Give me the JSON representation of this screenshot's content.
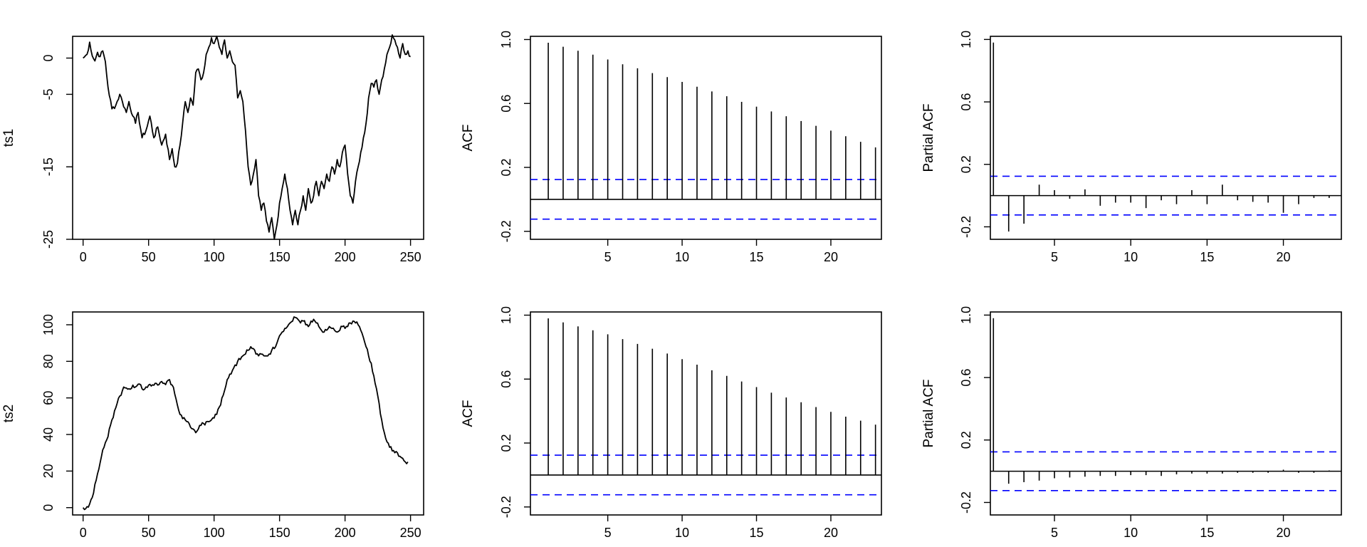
{
  "colors": {
    "line": "#000000",
    "ci": "#0000ff",
    "frame": "#000000"
  },
  "chart_data": [
    {
      "id": "ts1-series",
      "type": "line",
      "ylabel": "ts1",
      "xlabel": "",
      "xlim": [
        -8,
        260
      ],
      "ylim": [
        -25,
        3
      ],
      "x_ticks": [
        0,
        50,
        100,
        150,
        200,
        250
      ],
      "y_ticks": [
        -25,
        -15,
        -5,
        0
      ],
      "y_tick_labels": [
        "-25",
        "-15",
        "-5",
        "0"
      ],
      "keypoints": [
        [
          0,
          0
        ],
        [
          3,
          0.5
        ],
        [
          5,
          2.2
        ],
        [
          7,
          0.3
        ],
        [
          9,
          -0.4
        ],
        [
          11,
          0.8
        ],
        [
          13,
          0.2
        ],
        [
          15,
          1.0
        ],
        [
          17,
          -0.5
        ],
        [
          19,
          -4
        ],
        [
          22,
          -7
        ],
        [
          25,
          -6.5
        ],
        [
          28,
          -5
        ],
        [
          30,
          -6
        ],
        [
          33,
          -7.5
        ],
        [
          35,
          -6
        ],
        [
          38,
          -8
        ],
        [
          40,
          -9
        ],
        [
          42,
          -7.5
        ],
        [
          45,
          -11
        ],
        [
          48,
          -10
        ],
        [
          51,
          -8
        ],
        [
          54,
          -11
        ],
        [
          57,
          -9.5
        ],
        [
          60,
          -12
        ],
        [
          63,
          -10.5
        ],
        [
          66,
          -14
        ],
        [
          68,
          -12.5
        ],
        [
          70,
          -15
        ],
        [
          72,
          -14.5
        ],
        [
          74,
          -12
        ],
        [
          76,
          -9
        ],
        [
          78,
          -6
        ],
        [
          80,
          -7.5
        ],
        [
          82,
          -5.5
        ],
        [
          84,
          -6.5
        ],
        [
          86,
          -2
        ],
        [
          88,
          -1.5
        ],
        [
          90,
          -3
        ],
        [
          92,
          -2
        ],
        [
          94,
          0.5
        ],
        [
          96,
          1.5
        ],
        [
          98,
          2.8
        ],
        [
          100,
          2
        ],
        [
          102,
          3
        ],
        [
          104,
          1.5
        ],
        [
          106,
          0.5
        ],
        [
          108,
          2.5
        ],
        [
          110,
          0
        ],
        [
          112,
          1
        ],
        [
          114,
          -0.5
        ],
        [
          116,
          -1
        ],
        [
          118,
          -5.5
        ],
        [
          120,
          -4.5
        ],
        [
          122,
          -6
        ],
        [
          124,
          -10
        ],
        [
          126,
          -15
        ],
        [
          128,
          -17.5
        ],
        [
          130,
          -16
        ],
        [
          132,
          -14
        ],
        [
          134,
          -19
        ],
        [
          136,
          -21
        ],
        [
          138,
          -20
        ],
        [
          140,
          -22.5
        ],
        [
          142,
          -24
        ],
        [
          144,
          -22
        ],
        [
          146,
          -25
        ],
        [
          148,
          -23
        ],
        [
          150,
          -20
        ],
        [
          152,
          -18
        ],
        [
          154,
          -16
        ],
        [
          156,
          -18
        ],
        [
          158,
          -21
        ],
        [
          160,
          -23
        ],
        [
          162,
          -21
        ],
        [
          164,
          -23
        ],
        [
          166,
          -21
        ],
        [
          168,
          -19
        ],
        [
          170,
          -21
        ],
        [
          172,
          -18
        ],
        [
          174,
          -20
        ],
        [
          176,
          -19
        ],
        [
          178,
          -17
        ],
        [
          180,
          -19
        ],
        [
          182,
          -17
        ],
        [
          184,
          -18
        ],
        [
          186,
          -16
        ],
        [
          188,
          -17
        ],
        [
          190,
          -15
        ],
        [
          192,
          -16
        ],
        [
          194,
          -14
        ],
        [
          196,
          -15
        ],
        [
          198,
          -13
        ],
        [
          200,
          -12
        ],
        [
          202,
          -16
        ],
        [
          204,
          -19
        ],
        [
          206,
          -20
        ],
        [
          208,
          -17
        ],
        [
          210,
          -15
        ],
        [
          212,
          -13
        ],
        [
          214,
          -11
        ],
        [
          216,
          -9
        ],
        [
          218,
          -5.5
        ],
        [
          220,
          -3.5
        ],
        [
          222,
          -4
        ],
        [
          224,
          -3
        ],
        [
          226,
          -5
        ],
        [
          228,
          -3
        ],
        [
          230,
          -1.5
        ],
        [
          232,
          0.5
        ],
        [
          234,
          1.5
        ],
        [
          236,
          3.2
        ],
        [
          238,
          2.5
        ],
        [
          240,
          1.5
        ],
        [
          242,
          0
        ],
        [
          244,
          2
        ],
        [
          246,
          0.5
        ],
        [
          248,
          1
        ],
        [
          250,
          0.2
        ]
      ]
    },
    {
      "id": "ts1-acf",
      "type": "bar",
      "ylabel": "ACF",
      "xlim": [
        -0.2,
        23.4
      ],
      "ylim": [
        -0.25,
        1.02
      ],
      "x_ticks": [
        5,
        10,
        15,
        20
      ],
      "y_ticks": [
        -0.2,
        0.2,
        0.6,
        1.0
      ],
      "y_tick_labels": [
        "-0.2",
        "0.2",
        "0.6",
        "1.0"
      ],
      "lags": [
        1,
        2,
        3,
        4,
        5,
        6,
        7,
        8,
        9,
        10,
        11,
        12,
        13,
        14,
        15,
        16,
        17,
        18,
        19,
        20,
        21,
        22,
        23
      ],
      "values": [
        0.98,
        0.955,
        0.93,
        0.905,
        0.875,
        0.845,
        0.82,
        0.79,
        0.765,
        0.735,
        0.705,
        0.675,
        0.645,
        0.61,
        0.58,
        0.55,
        0.52,
        0.49,
        0.46,
        0.43,
        0.395,
        0.36,
        0.325
      ],
      "ci": 0.124
    },
    {
      "id": "ts1-pacf",
      "type": "bar",
      "ylabel": "Partial ACF",
      "xlim": [
        0.8,
        23.8
      ],
      "ylim": [
        -0.28,
        1.02
      ],
      "x_ticks": [
        5,
        10,
        15,
        20
      ],
      "y_ticks": [
        -0.2,
        0.2,
        0.6,
        1.0
      ],
      "y_tick_labels": [
        "-0.2",
        "0.2",
        "0.6",
        "1.0"
      ],
      "lags": [
        1,
        2,
        3,
        4,
        5,
        6,
        7,
        8,
        9,
        10,
        11,
        12,
        13,
        14,
        15,
        16,
        17,
        18,
        19,
        20,
        21,
        22,
        23
      ],
      "values": [
        0.98,
        -0.23,
        -0.18,
        0.07,
        0.035,
        -0.02,
        0.04,
        -0.065,
        -0.045,
        -0.045,
        -0.08,
        -0.03,
        -0.055,
        0.035,
        -0.055,
        0.07,
        -0.03,
        -0.04,
        -0.045,
        -0.11,
        -0.055,
        -0.015,
        -0.015
      ],
      "ci": 0.124
    },
    {
      "id": "ts2-series",
      "type": "line",
      "ylabel": "ts2",
      "xlabel": "",
      "xlim": [
        -8,
        260
      ],
      "ylim": [
        -4,
        107
      ],
      "x_ticks": [
        0,
        50,
        100,
        150,
        200,
        250
      ],
      "y_ticks": [
        0,
        20,
        40,
        60,
        80,
        100
      ],
      "y_tick_labels": [
        "0",
        "20",
        "40",
        "60",
        "80",
        "100"
      ],
      "keypoints": [
        [
          0,
          0
        ],
        [
          3,
          0.5
        ],
        [
          5,
          2
        ],
        [
          8,
          8
        ],
        [
          10,
          15
        ],
        [
          12,
          21
        ],
        [
          14,
          28
        ],
        [
          16,
          33
        ],
        [
          18,
          37
        ],
        [
          20,
          43
        ],
        [
          22,
          48
        ],
        [
          24,
          53
        ],
        [
          26,
          57
        ],
        [
          28,
          61
        ],
        [
          30,
          64
        ],
        [
          32,
          65.5
        ],
        [
          35,
          65
        ],
        [
          38,
          67
        ],
        [
          40,
          66
        ],
        [
          42,
          67.5
        ],
        [
          45,
          65
        ],
        [
          48,
          66
        ],
        [
          50,
          67
        ],
        [
          52,
          66.5
        ],
        [
          55,
          68
        ],
        [
          57,
          67
        ],
        [
          60,
          69
        ],
        [
          62,
          68
        ],
        [
          64,
          69
        ],
        [
          66,
          70
        ],
        [
          68,
          67
        ],
        [
          70,
          62
        ],
        [
          72,
          56
        ],
        [
          74,
          51
        ],
        [
          78,
          48
        ],
        [
          80,
          47
        ],
        [
          82,
          44
        ],
        [
          84,
          43
        ],
        [
          86,
          41
        ],
        [
          88,
          43
        ],
        [
          90,
          45
        ],
        [
          92,
          46
        ],
        [
          94,
          47
        ],
        [
          96,
          47
        ],
        [
          98,
          48
        ],
        [
          100,
          49
        ],
        [
          102,
          51
        ],
        [
          104,
          55
        ],
        [
          106,
          60
        ],
        [
          108,
          64
        ],
        [
          110,
          70
        ],
        [
          112,
          73
        ],
        [
          114,
          75
        ],
        [
          116,
          78
        ],
        [
          118,
          80
        ],
        [
          120,
          81
        ],
        [
          122,
          83
        ],
        [
          124,
          84
        ],
        [
          126,
          86
        ],
        [
          128,
          88
        ],
        [
          130,
          87
        ],
        [
          132,
          84
        ],
        [
          134,
          83
        ],
        [
          136,
          84
        ],
        [
          138,
          83
        ],
        [
          140,
          83
        ],
        [
          142,
          84
        ],
        [
          144,
          86
        ],
        [
          146,
          87
        ],
        [
          148,
          90
        ],
        [
          150,
          94
        ],
        [
          152,
          96
        ],
        [
          154,
          98
        ],
        [
          156,
          99
        ],
        [
          158,
          101
        ],
        [
          160,
          102
        ],
        [
          162,
          104
        ],
        [
          164,
          103
        ],
        [
          166,
          101
        ],
        [
          168,
          102
        ],
        [
          170,
          100
        ],
        [
          172,
          99
        ],
        [
          174,
          102
        ],
        [
          176,
          103
        ],
        [
          178,
          101
        ],
        [
          180,
          99
        ],
        [
          182,
          97
        ],
        [
          184,
          96
        ],
        [
          186,
          97
        ],
        [
          188,
          99
        ],
        [
          190,
          98
        ],
        [
          192,
          97
        ],
        [
          194,
          96
        ],
        [
          196,
          97
        ],
        [
          198,
          99
        ],
        [
          200,
          98
        ],
        [
          202,
          99
        ],
        [
          204,
          101
        ],
        [
          206,
          102
        ],
        [
          208,
          101
        ],
        [
          210,
          100
        ],
        [
          212,
          97
        ],
        [
          214,
          93
        ],
        [
          216,
          88
        ],
        [
          218,
          83
        ],
        [
          220,
          79
        ],
        [
          222,
          72
        ],
        [
          224,
          65
        ],
        [
          226,
          57
        ],
        [
          228,
          48
        ],
        [
          230,
          41
        ],
        [
          232,
          36
        ],
        [
          234,
          33
        ],
        [
          236,
          31
        ],
        [
          238,
          30
        ],
        [
          240,
          30
        ],
        [
          242,
          28
        ],
        [
          244,
          27
        ],
        [
          246,
          25
        ],
        [
          248,
          25
        ]
      ]
    },
    {
      "id": "ts2-acf",
      "type": "bar",
      "ylabel": "ACF",
      "xlim": [
        -0.2,
        23.4
      ],
      "ylim": [
        -0.25,
        1.02
      ],
      "x_ticks": [
        5,
        10,
        15,
        20
      ],
      "y_ticks": [
        -0.2,
        0.2,
        0.6,
        1.0
      ],
      "y_tick_labels": [
        "-0.2",
        "0.2",
        "0.6",
        "1.0"
      ],
      "lags": [
        1,
        2,
        3,
        4,
        5,
        6,
        7,
        8,
        9,
        10,
        11,
        12,
        13,
        14,
        15,
        16,
        17,
        18,
        19,
        20,
        21,
        22,
        23
      ],
      "values": [
        0.98,
        0.955,
        0.93,
        0.905,
        0.88,
        0.85,
        0.82,
        0.79,
        0.76,
        0.725,
        0.69,
        0.655,
        0.62,
        0.585,
        0.55,
        0.515,
        0.485,
        0.455,
        0.425,
        0.395,
        0.365,
        0.34,
        0.315
      ],
      "ci": 0.124
    },
    {
      "id": "ts2-pacf",
      "type": "bar",
      "ylabel": "Partial ACF",
      "xlim": [
        0.8,
        23.8
      ],
      "ylim": [
        -0.28,
        1.02
      ],
      "x_ticks": [
        5,
        10,
        15,
        20
      ],
      "y_ticks": [
        -0.2,
        0.2,
        0.6,
        1.0
      ],
      "y_tick_labels": [
        "-0.2",
        "0.2",
        "0.6",
        "1.0"
      ],
      "lags": [
        1,
        2,
        3,
        4,
        5,
        6,
        7,
        8,
        9,
        10,
        11,
        12,
        13,
        14,
        15,
        16,
        17,
        18,
        19,
        20,
        21,
        22,
        23
      ],
      "values": [
        0.98,
        -0.08,
        -0.07,
        -0.06,
        -0.045,
        -0.04,
        -0.035,
        -0.03,
        -0.03,
        -0.025,
        -0.025,
        -0.03,
        -0.02,
        -0.015,
        -0.015,
        -0.015,
        -0.01,
        -0.01,
        -0.01,
        0.01,
        -0.01,
        -0.01,
        0.005
      ],
      "ci": 0.124
    }
  ]
}
